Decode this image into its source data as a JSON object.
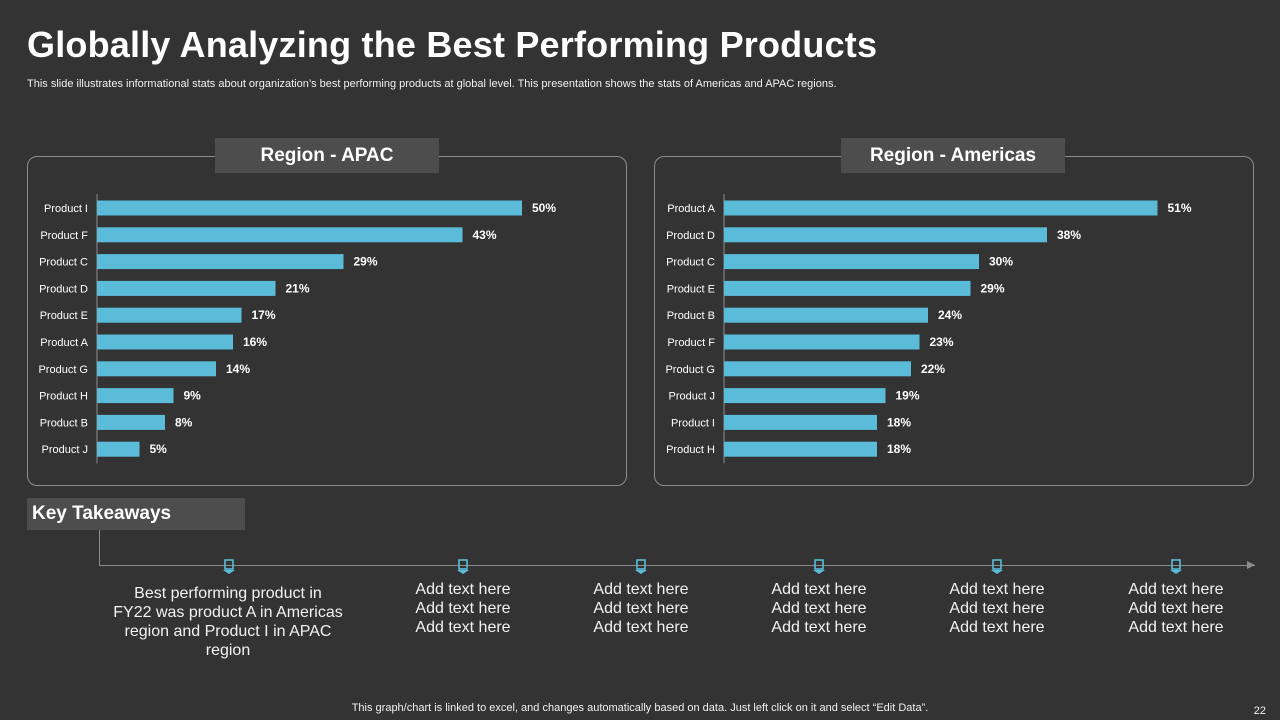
{
  "title": "Globally Analyzing the Best Performing Products",
  "subtitle": "This slide illustrates informational stats about organization’s best performing products at global level. This presentation shows the stats of Americas and APAC  regions.",
  "colors": {
    "bar": "#5bbcd9",
    "background": "#333333",
    "tab": "#4d4d4d",
    "border": "#8c8c8c"
  },
  "chart_data": [
    {
      "type": "bar",
      "orientation": "horizontal",
      "title": "Region - APAC",
      "categories": [
        "Product I",
        "Product F",
        "Product C",
        "Product D",
        "Product E",
        "Product A",
        "Product G",
        "Product H",
        "Product B",
        "Product J"
      ],
      "values": [
        50,
        43,
        29,
        21,
        17,
        16,
        14,
        9,
        8,
        5
      ],
      "value_labels": [
        "50%",
        "43%",
        "29%",
        "21%",
        "17%",
        "16%",
        "14%",
        "9%",
        "8%",
        "5%"
      ],
      "unit": "%",
      "xlim": [
        0,
        55
      ],
      "grid": false,
      "legend": "none"
    },
    {
      "type": "bar",
      "orientation": "horizontal",
      "title": "Region - Americas",
      "categories": [
        "Product A",
        "Product D",
        "Product C",
        "Product E",
        "Product B",
        "Product F",
        "Product G",
        "Product J",
        "Product I",
        "Product H"
      ],
      "values": [
        51,
        38,
        30,
        29,
        24,
        23,
        22,
        19,
        18,
        18
      ],
      "value_labels": [
        "51%",
        "38%",
        "30%",
        "29%",
        "24%",
        "23%",
        "22%",
        "19%",
        "18%",
        "18%"
      ],
      "unit": "%",
      "xlim": [
        0,
        55
      ],
      "grid": false,
      "legend": "none"
    }
  ],
  "key_takeaways": {
    "heading": "Key Takeaways",
    "main": "Best performing product in FY22 was product A in Americas region and Product I in APAC region",
    "items": [
      "Add text here\nAdd text here\nAdd text here",
      "Add text here\nAdd text here\nAdd text here",
      "Add text here\nAdd text here\nAdd text here",
      "Add text here\nAdd text here\nAdd text here",
      "Add text here\nAdd text here\nAdd text here"
    ]
  },
  "footer": "This graph/chart is linked to excel,  and changes automatically based on data. Just left click on it and select “Edit Data”.",
  "page_number": "22"
}
